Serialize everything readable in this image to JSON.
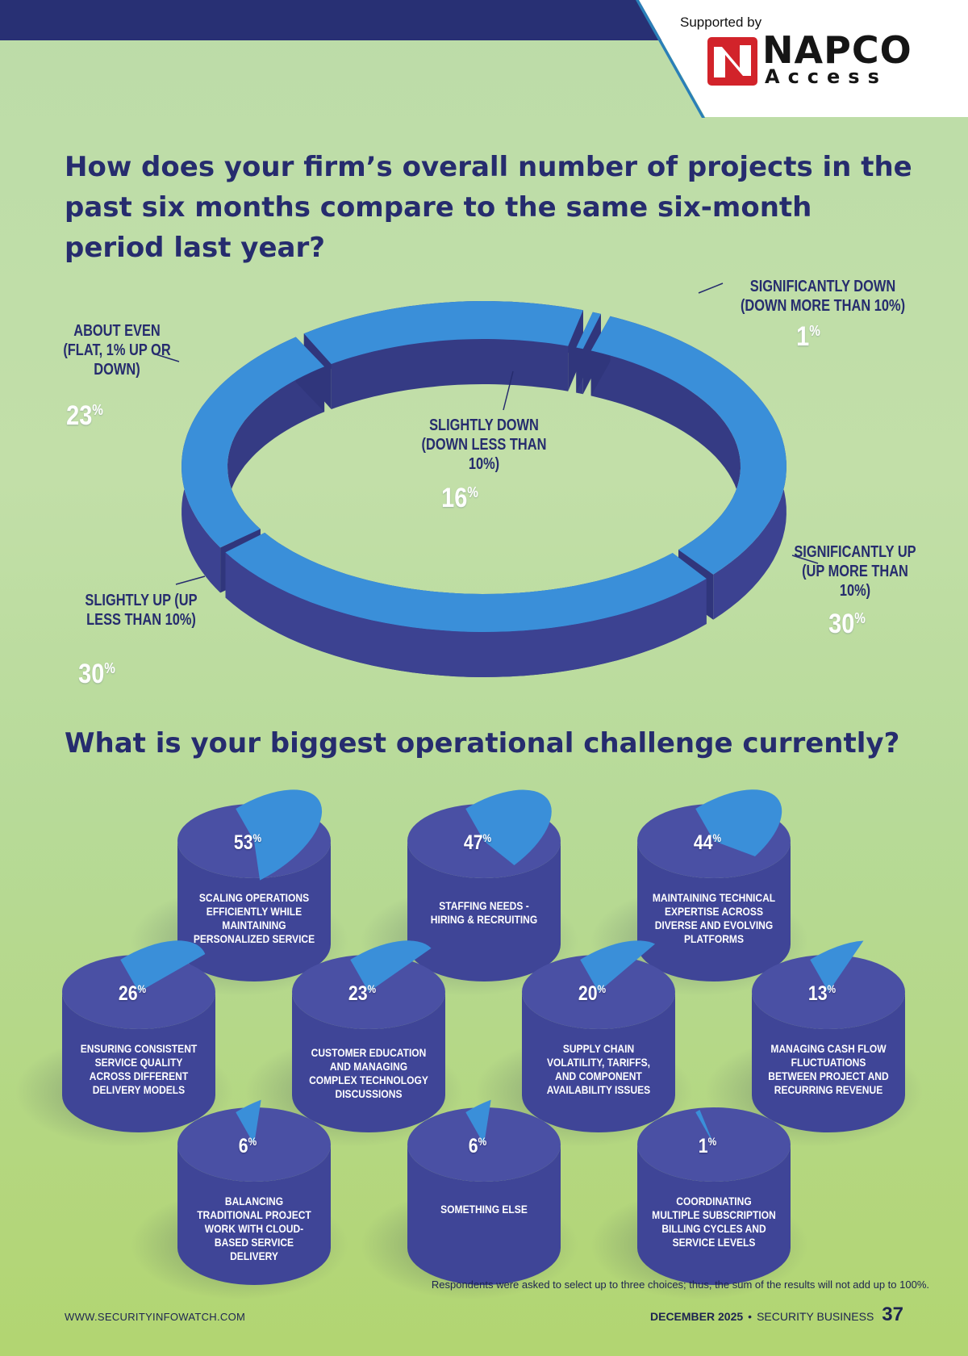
{
  "header": {
    "supported_by": "Supported by",
    "logo_word": "NAPCO",
    "logo_subword": "Access",
    "colors": {
      "band": "#283074",
      "logo_red": "#d2232a",
      "logo_text": "#151515"
    }
  },
  "question1": {
    "title": "How does your firm’s overall number of projects in the past six months compare to the same six-month period last year?"
  },
  "question2": {
    "title": "What is your biggest operational challenge currently?"
  },
  "chart_data": [
    {
      "type": "pie",
      "style": "3d-ring",
      "title": "How does your firm’s overall number of projects in the past six months compare to the same six-month period last year?",
      "unit": "%",
      "slices": [
        {
          "label": "SIGNIFICANTLY DOWN (DOWN MORE THAN 10%)",
          "value": 1
        },
        {
          "label": "SIGNIFICANTLY UP (UP MORE THAN 10%)",
          "value": 30
        },
        {
          "label": "SLIGHTLY UP (UP LESS THAN 10%)",
          "value": 30
        },
        {
          "label": "ABOUT EVEN (FLAT, 1% UP OR DOWN)",
          "value": 23
        },
        {
          "label": "SLIGHTLY DOWN (DOWN LESS THAN 10%)",
          "value": 16
        }
      ],
      "colors": {
        "top": "#3a8fd9",
        "side": "#3c4291"
      }
    },
    {
      "type": "pie",
      "style": "3d-cylinders",
      "title": "What is your biggest operational challenge currently?",
      "unit": "%",
      "items": [
        {
          "label": "SCALING OPERATIONS EFFICIENTLY WHILE MAINTAINING PERSONALIZED SERVICE",
          "value": 53
        },
        {
          "label": "STAFFING NEEDS - HIRING & RECRUITING",
          "value": 47
        },
        {
          "label": "MAINTAINING TECHNICAL EXPERTISE ACROSS DIVERSE AND EVOLVING PLATFORMS",
          "value": 44
        },
        {
          "label": "ENSURING CONSISTENT SERVICE QUALITY ACROSS DIFFERENT DELIVERY MODELS",
          "value": 26
        },
        {
          "label": "CUSTOMER EDUCATION AND MANAGING COMPLEX TECHNOLOGY DISCUSSIONS",
          "value": 23
        },
        {
          "label": "SUPPLY CHAIN VOLATILITY, TARIFFS, AND COMPONENT AVAILABILITY ISSUES",
          "value": 20
        },
        {
          "label": "MANAGING CASH FLOW FLUCTUATIONS BETWEEN PROJECT AND RECURRING REVENUE",
          "value": 13
        },
        {
          "label": "BALANCING TRADITIONAL PROJECT WORK WITH CLOUD-BASED SERVICE DELIVERY",
          "value": 6
        },
        {
          "label": "SOMETHING ELSE",
          "value": 6
        },
        {
          "label": "COORDINATING MULTIPLE SUBSCRIPTION BILLING CYCLES AND SERVICE LEVELS",
          "value": 1
        }
      ],
      "colors": {
        "slice": "#3a8fd9",
        "body": "#3f4597"
      }
    }
  ],
  "footnote": "Respondents were asked to select up to three choices; thus, the sum of the results will not add up to 100%.",
  "footer": {
    "website": "WWW.SECURITYINFOWATCH.COM",
    "date": "DECEMBER 2025",
    "separator": "•",
    "magazine": "SECURITY BUSINESS",
    "page": "37"
  }
}
